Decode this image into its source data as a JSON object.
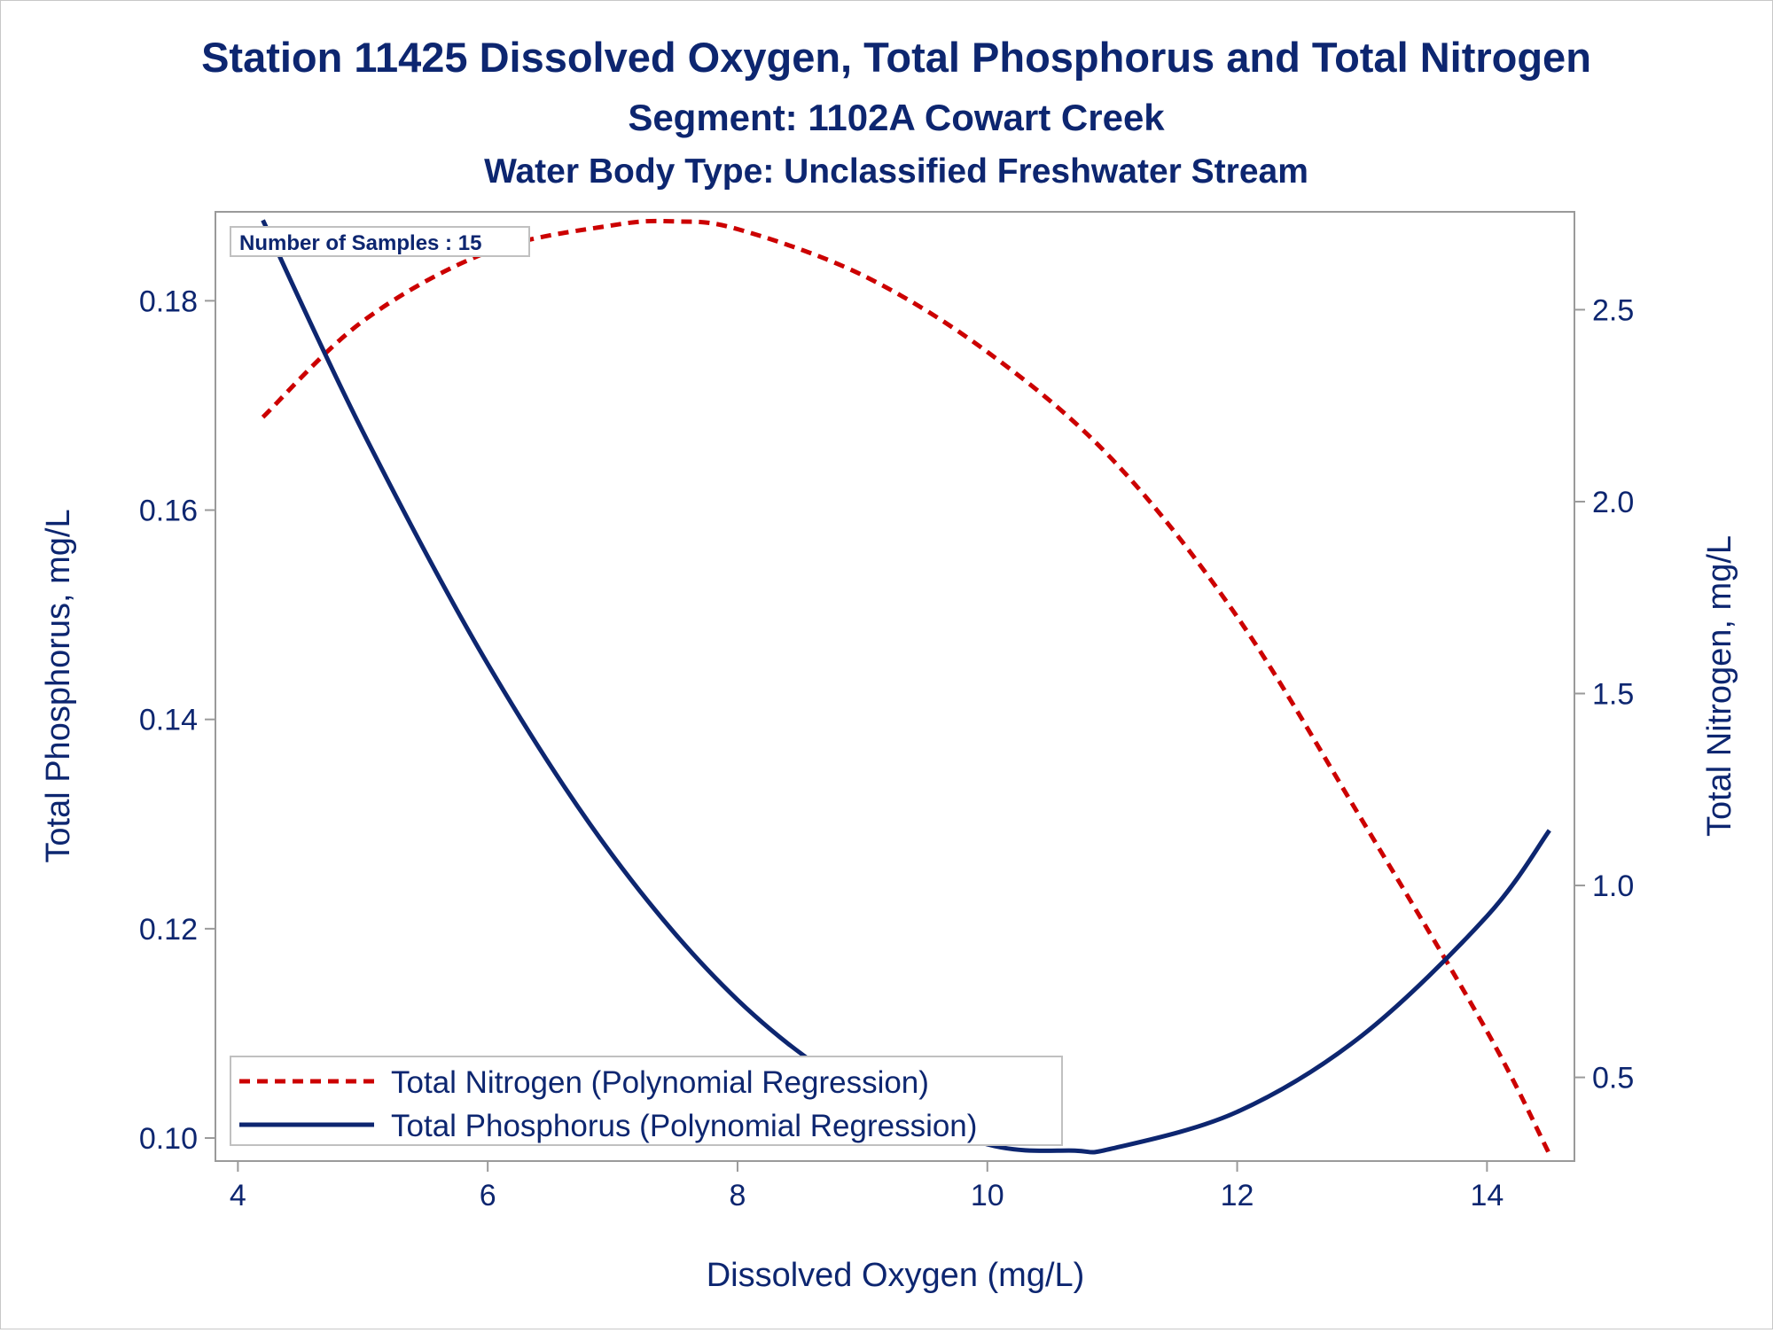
{
  "chart_data": {
    "type": "line",
    "title": "Station 11425  Dissolved Oxygen, Total Phosphorus and Total Nitrogen",
    "subtitle": "Segment: 1102A  Cowart Creek",
    "subtitle2": "Water Body Type: Unclassified Freshwater Stream",
    "xlabel": "Dissolved Oxygen (mg/L)",
    "ylabel": "Total Phosphorus, mg/L",
    "y2label": "Total Nitrogen, mg/L",
    "xlim": [
      3.82,
      14.7
    ],
    "ylim": [
      0.0978,
      0.1885
    ],
    "y2lim": [
      0.282,
      2.755
    ],
    "xticks": [
      4,
      6,
      8,
      10,
      12,
      14
    ],
    "yticks": [
      0.1,
      0.12,
      0.14,
      0.16,
      0.18
    ],
    "ytick_labels": [
      "0.10",
      "0.12",
      "0.14",
      "0.16",
      "0.18"
    ],
    "y2ticks": [
      0.5,
      1.0,
      1.5,
      2.0,
      2.5
    ],
    "y2tick_labels": [
      "0.5",
      "1.0",
      "1.5",
      "2.0",
      "2.5"
    ],
    "grid": false,
    "annotation": "Number of Samples : 15",
    "legend_position": "bottom-left",
    "colors": {
      "text": "#0d2670",
      "axis": "#9a9a9a",
      "nitrogen": "#cc0000",
      "phosphorus": "#0d2670"
    },
    "series": [
      {
        "name": "Total Nitrogen (Polynomial Regression)",
        "axis": "y2",
        "style": "dashed",
        "color": "#cc0000",
        "x": [
          4.2,
          5.0,
          6.0,
          7.0,
          7.5,
          8.0,
          9.0,
          10.0,
          11.0,
          12.0,
          13.0,
          14.0,
          14.5
        ],
        "y": [
          2.22,
          2.47,
          2.65,
          2.72,
          2.73,
          2.71,
          2.59,
          2.39,
          2.11,
          1.7,
          1.17,
          0.62,
          0.3
        ]
      },
      {
        "name": "Total Phosphorus (Polynomial Regression)",
        "axis": "y",
        "style": "solid",
        "color": "#0d2670",
        "x": [
          4.2,
          5.0,
          6.0,
          7.0,
          8.0,
          9.0,
          10.0,
          10.7,
          11.0,
          12.0,
          13.0,
          14.0,
          14.5
        ],
        "y": [
          0.1877,
          0.1675,
          0.1453,
          0.127,
          0.1132,
          0.1042,
          0.0994,
          0.0988,
          0.099,
          0.1025,
          0.1098,
          0.1212,
          0.1294
        ]
      }
    ]
  }
}
